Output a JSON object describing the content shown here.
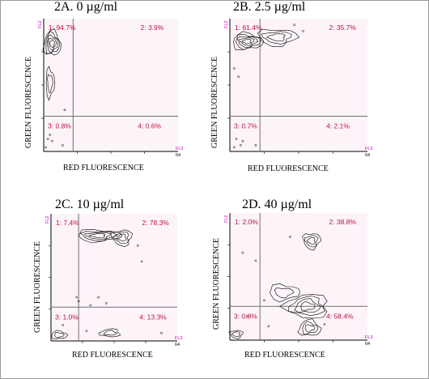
{
  "colors": {
    "quadrant_label": "#c0103c",
    "channel_label": "#c000c0",
    "plot_bg": "#fdf4fa",
    "contour": "#000000",
    "gate": "#707070"
  },
  "chart_data": [
    {
      "type": "scatter",
      "title": "2A. 0 µg/ml",
      "xlabel": "RED FLUORESCENCE",
      "ylabel": "GREEN FLUORESCENCE",
      "x_channel": "FL3",
      "y_channel": "FL2",
      "xlim": [
        0,
        64
      ],
      "ylim": [
        0,
        64
      ],
      "x_max_tick": "64",
      "gate": {
        "x": 14,
        "y": 17
      },
      "quadrants": [
        {
          "label": "1: 94.7%",
          "value": 94.7
        },
        {
          "label": "2: 3.9%",
          "value": 3.9
        },
        {
          "label": "3: 0.8%",
          "value": 0.8
        },
        {
          "label": "4: 0.6%",
          "value": 0.6
        }
      ],
      "populations": [
        {
          "x": 4,
          "y": 52,
          "rx": 4,
          "ry": 6,
          "levels": 5
        },
        {
          "x": 3,
          "y": 33,
          "rx": 2,
          "ry": 7,
          "levels": 2
        }
      ],
      "scatter_points": [
        [
          2,
          6
        ],
        [
          4,
          5
        ],
        [
          1,
          2
        ],
        [
          9,
          3
        ],
        [
          3,
          8
        ],
        [
          10,
          20
        ]
      ]
    },
    {
      "type": "scatter",
      "title": "2B. 2.5 µg/ml",
      "xlabel": "RED FLUORESCENCE",
      "ylabel": "GREEN FLUORESCENCE",
      "x_channel": "FL3",
      "y_channel": "FL2",
      "xlim": [
        0,
        64
      ],
      "ylim": [
        0,
        64
      ],
      "x_max_tick": "64",
      "gate": {
        "x": 14,
        "y": 17
      },
      "quadrants": [
        {
          "label": "1: 61.4%",
          "value": 61.4
        },
        {
          "label": "2: 35.7%",
          "value": 35.7
        },
        {
          "label": "3: 0.7%",
          "value": 0.7
        },
        {
          "label": "4: 2.1%",
          "value": 2.1
        }
      ],
      "populations": [
        {
          "x": 8,
          "y": 53,
          "rx": 7,
          "ry": 4,
          "levels": 5
        },
        {
          "x": 22,
          "y": 55,
          "rx": 9,
          "ry": 4,
          "levels": 3
        }
      ],
      "scatter_points": [
        [
          3,
          6
        ],
        [
          5,
          3
        ],
        [
          2,
          2
        ],
        [
          6,
          5
        ],
        [
          12,
          3
        ],
        [
          34,
          58
        ],
        [
          30,
          61
        ],
        [
          2,
          40
        ],
        [
          4,
          36
        ]
      ]
    },
    {
      "type": "scatter",
      "title": "2C. 10 µg/ml",
      "xlabel": "RED FLUORESCENCE",
      "ylabel": "GREEN FLUORESCENCE",
      "x_channel": "FL3",
      "y_channel": "FL2",
      "xlim": [
        0,
        64
      ],
      "ylim": [
        0,
        64
      ],
      "x_max_tick": "64",
      "gate": {
        "x": 14,
        "y": 17
      },
      "quadrants": [
        {
          "label": "1: 7.4%",
          "value": 7.4
        },
        {
          "label": "2: 78.3%",
          "value": 78.3
        },
        {
          "label": "3: 1.0%",
          "value": 1.0
        },
        {
          "label": "4: 13.3%",
          "value": 13.3
        }
      ],
      "populations": [
        {
          "x": 24,
          "y": 53,
          "rx": 11,
          "ry": 3,
          "levels": 4
        },
        {
          "x": 36,
          "y": 52,
          "rx": 5,
          "ry": 4,
          "levels": 3
        },
        {
          "x": 30,
          "y": 4,
          "rx": 5,
          "ry": 2,
          "levels": 2
        },
        {
          "x": 4,
          "y": 3,
          "rx": 4,
          "ry": 2,
          "levels": 2
        }
      ],
      "scatter_points": [
        [
          46,
          40
        ],
        [
          44,
          48
        ],
        [
          20,
          18
        ],
        [
          14,
          20
        ],
        [
          24,
          22
        ],
        [
          28,
          19
        ],
        [
          18,
          5
        ],
        [
          56,
          4
        ],
        [
          6,
          8
        ],
        [
          13,
          22
        ]
      ]
    },
    {
      "type": "scatter",
      "title": "2D. 40 µg/ml",
      "xlabel": "RED FLUORESCENCE",
      "ylabel": "GREEN FLUORESCENCE",
      "x_channel": "FL3",
      "y_channel": "FL2",
      "xlim": [
        0,
        64
      ],
      "ylim": [
        0,
        64
      ],
      "x_max_tick": "64",
      "gate": {
        "x": 14,
        "y": 17
      },
      "quadrants": [
        {
          "label": "1: 2.0%",
          "value": 2.0
        },
        {
          "label": "2: 38.8%",
          "value": 38.8
        },
        {
          "label": "3: 0.8%",
          "value": 0.8
        },
        {
          "label": "4: 58.4%",
          "value": 58.4
        }
      ],
      "populations": [
        {
          "x": 38,
          "y": 50,
          "rx": 4,
          "ry": 4,
          "levels": 3
        },
        {
          "x": 36,
          "y": 17,
          "rx": 10,
          "ry": 6,
          "levels": 4
        },
        {
          "x": 37,
          "y": 6,
          "rx": 5,
          "ry": 4,
          "levels": 3
        },
        {
          "x": 25,
          "y": 24,
          "rx": 7,
          "ry": 4,
          "levels": 2
        },
        {
          "x": 3,
          "y": 3,
          "rx": 3,
          "ry": 2,
          "levels": 2
        }
      ],
      "scatter_points": [
        [
          28,
          52
        ],
        [
          6,
          44
        ],
        [
          12,
          40
        ],
        [
          44,
          8
        ],
        [
          18,
          7
        ],
        [
          8,
          12
        ],
        [
          16,
          20
        ]
      ]
    }
  ]
}
